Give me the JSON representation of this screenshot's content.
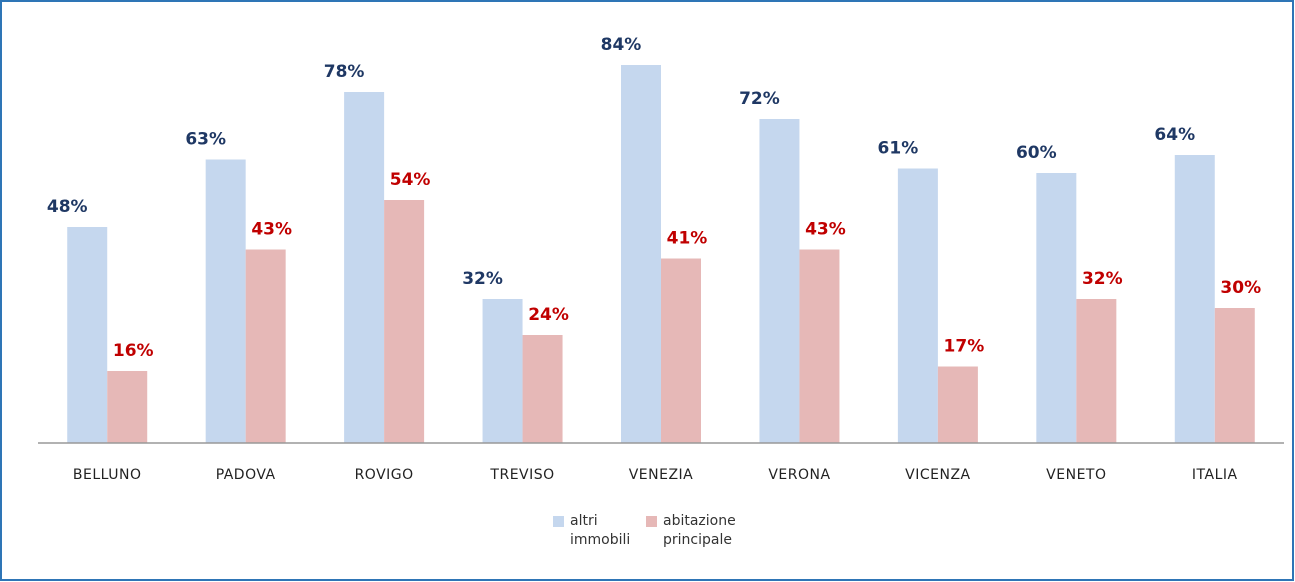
{
  "chart_data": {
    "type": "bar",
    "categories": [
      "BELLUNO",
      "PADOVA",
      "ROVIGO",
      "TREVISO",
      "VENEZIA",
      "VERONA",
      "VICENZA",
      "VENETO",
      "ITALIA"
    ],
    "series": [
      {
        "name": "altri immobili",
        "color": "#c5d7ee",
        "label_color": "#1f3864",
        "values": [
          48,
          63,
          78,
          32,
          84,
          72,
          61,
          60,
          64
        ],
        "value_labels": [
          "48%",
          "63%",
          "78%",
          "32%",
          "84%",
          "72%",
          "61%",
          "60%",
          "64%"
        ]
      },
      {
        "name": "abitazione principale",
        "color": "#e6b8b7",
        "label_color": "#c00000",
        "values": [
          16,
          43,
          54,
          24,
          41,
          43,
          17,
          32,
          30
        ],
        "value_labels": [
          "16%",
          "43%",
          "54%",
          "24%",
          "41%",
          "43%",
          "17%",
          "32%",
          "30%"
        ]
      }
    ],
    "ylim": [
      0,
      90
    ]
  }
}
